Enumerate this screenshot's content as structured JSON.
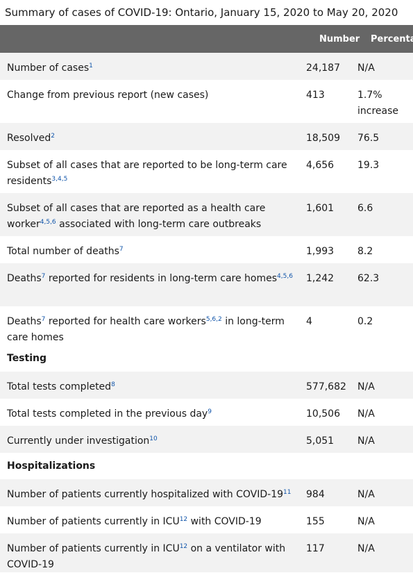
{
  "caption": "Summary of cases of COVID-19: Ontario, January 15, 2020 to May 20, 2020",
  "header": {
    "col1": "",
    "col2": "Number",
    "col3": "Percentage"
  },
  "rows": [
    {
      "label": "Number of cases",
      "sup": "1",
      "label2": "",
      "sup2": "",
      "label3": "",
      "number": "24,187",
      "pct": "N/A"
    },
    {
      "label": "Change from previous report (new cases)",
      "sup": "",
      "label2": "",
      "sup2": "",
      "label3": "",
      "number": "413",
      "pct": "1.7% increase"
    },
    {
      "label": "Resolved",
      "sup": "2",
      "label2": "",
      "sup2": "",
      "label3": "",
      "number": "18,509",
      "pct": "76.5"
    },
    {
      "label": "Subset of all cases that are reported to be long-term care residents",
      "sup": "3,4,5",
      "label2": "",
      "sup2": "",
      "label3": "",
      "number": "4,656",
      "pct": "19.3"
    },
    {
      "label": "Subset of all cases that are reported as a health care worker",
      "sup": "4,5,6",
      "label2": " associated with long-term care outbreaks",
      "sup2": "",
      "label3": "",
      "number": "1,601",
      "pct": "6.6"
    },
    {
      "label": "Total number of deaths",
      "sup": "7",
      "label2": "",
      "sup2": "",
      "label3": "",
      "number": "1,993",
      "pct": "8.2"
    },
    {
      "label": "Deaths",
      "sup": "7",
      "label2": " reported for residents in long-term care homes",
      "sup2": "4,5,6",
      "label3": "",
      "number": "1,242",
      "pct": "62.3"
    },
    {
      "label": "Deaths",
      "sup": "7",
      "label2": " reported for health care workers",
      "sup2": "5,6,2",
      "label3": " in long-term care homes",
      "number": "4",
      "pct": "0.2"
    }
  ],
  "testing": {
    "heading": "Testing",
    "rows": [
      {
        "label": "Total tests completed",
        "sup": "8",
        "number": "577,682",
        "pct": "N/A"
      },
      {
        "label": "Total tests completed in the previous day",
        "sup": "9",
        "number": "10,506",
        "pct": "N/A"
      },
      {
        "label": "Currently under investigation",
        "sup": "10",
        "number": "5,051",
        "pct": "N/A"
      }
    ]
  },
  "hospitalizations": {
    "heading": "Hospitalizations",
    "rows": [
      {
        "label": "Number of patients currently hospitalized with COVID-19",
        "sup": "11",
        "label2": "",
        "number": "984",
        "pct": "N/A"
      },
      {
        "label": "Number of patients currently in ICU",
        "sup": "12",
        "label2": " with COVID-19",
        "number": "155",
        "pct": "N/A"
      },
      {
        "label": "Number of patients currently in ICU",
        "sup": "12",
        "label2": " on a ventilator with COVID-19",
        "number": "117",
        "pct": "N/A"
      }
    ]
  }
}
